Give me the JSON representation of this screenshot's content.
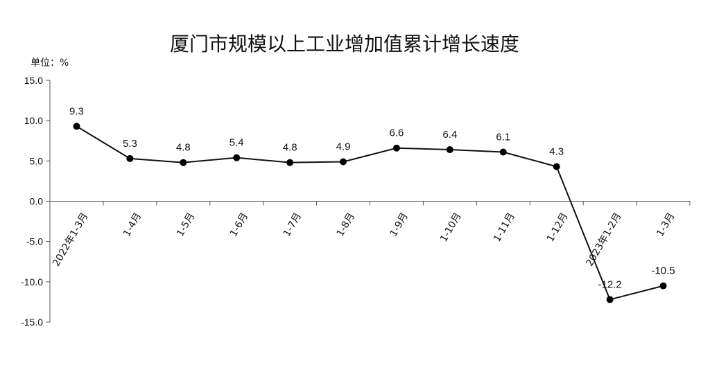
{
  "chart_data": {
    "type": "line",
    "title": "厦门市规模以上工业增加值累计增长速度",
    "unit_label": "单位：%",
    "categories": [
      "2022年1-3月",
      "1-4月",
      "1-5月",
      "1-6月",
      "1-7月",
      "1-8月",
      "1-9月",
      "1-10月",
      "1-11月",
      "1-12月",
      "2023年1-2月",
      "1-3月"
    ],
    "values": [
      9.3,
      5.3,
      4.8,
      5.4,
      4.8,
      4.9,
      6.6,
      6.4,
      6.1,
      4.3,
      -12.2,
      -10.5
    ],
    "data_labels": [
      "9.3",
      "5.3",
      "4.8",
      "5.4",
      "4.8",
      "4.9",
      "6.6",
      "6.4",
      "6.1",
      "4.3",
      "-12.2",
      "-10.5"
    ],
    "y_ticks": [
      "15.0",
      "10.0",
      "5.0",
      "0.0",
      "-5.0",
      "-10.0",
      "-15.0"
    ],
    "ylim": [
      -15,
      15
    ],
    "grid": false,
    "legend": "none",
    "line_color": "#111111",
    "marker_color": "#000000"
  }
}
